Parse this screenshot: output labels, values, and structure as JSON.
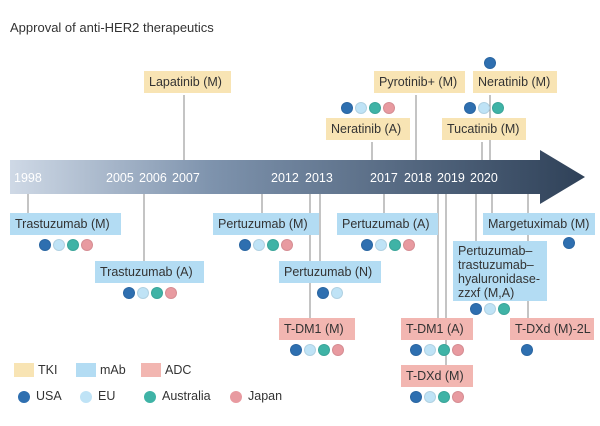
{
  "title": "Approval of anti-HER2 therapeutics",
  "colors": {
    "USA": "#2e6fb0",
    "EU": "#bfe3f6",
    "Australia": "#3fb3a6",
    "Japan": "#e89aa0",
    "TKI": "#f8e4b4",
    "mAb": "#b3dcf3",
    "ADC": "#f2b6b1"
  },
  "years": [
    "1998",
    "2005",
    "2006",
    "2007",
    "2012",
    "2013",
    "2017",
    "2018",
    "2019",
    "2020"
  ],
  "approvals": [
    {
      "drug": "Trastuzumab (M)",
      "year": "1998",
      "class": "mAb",
      "regions": [
        "USA",
        "EU",
        "Australia",
        "Japan"
      ]
    },
    {
      "drug": "Trastuzumab (A)",
      "year": "2006",
      "class": "mAb",
      "regions": [
        "USA",
        "EU",
        "Australia",
        "Japan"
      ]
    },
    {
      "drug": "Lapatinib (M)",
      "year": "2007",
      "class": "TKI",
      "regions": []
    },
    {
      "drug": "Pertuzumab (M)",
      "year": "2012",
      "class": "mAb",
      "regions": [
        "USA",
        "EU",
        "Australia",
        "Japan"
      ]
    },
    {
      "drug": "Pertuzumab (N)",
      "year": "2013",
      "class": "mAb",
      "regions": [
        "USA",
        "EU"
      ]
    },
    {
      "drug": "T-DM1 (M)",
      "year": "2013",
      "class": "ADC",
      "regions": [
        "USA",
        "EU",
        "Australia",
        "Japan"
      ]
    },
    {
      "drug": "Neratinib (A)",
      "year": "2017",
      "class": "TKI",
      "regions": [
        "USA",
        "EU",
        "Australia",
        "Japan"
      ]
    },
    {
      "drug": "Pertuzumab (A)",
      "year": "2017",
      "class": "mAb",
      "regions": [
        "USA",
        "EU",
        "Australia",
        "Japan"
      ]
    },
    {
      "drug": "Pyrotinib+ (M)",
      "year": "2018",
      "class": "TKI",
      "regions": []
    },
    {
      "drug": "T-DM1 (A)",
      "year": "2019",
      "class": "ADC",
      "regions": [
        "USA",
        "EU",
        "Australia",
        "Japan"
      ]
    },
    {
      "drug": "T-DXd (M)",
      "year": "2019",
      "class": "ADC",
      "regions": [
        "USA",
        "EU",
        "Australia",
        "Japan"
      ]
    },
    {
      "drug": "Tucatinib (M)",
      "year": "2020",
      "class": "TKI",
      "regions": [
        "USA",
        "EU",
        "Australia"
      ]
    },
    {
      "drug": "Neratinib (M)",
      "year": "2020",
      "class": "TKI",
      "regions": [
        "USA"
      ]
    },
    {
      "drug": "Pertuzumab–trastuzumab–hyaluronidase-zzxf (M,A)",
      "year": "2020",
      "class": "mAb",
      "regions": [
        "USA",
        "EU",
        "Australia"
      ]
    },
    {
      "drug": "Margetuximab (M)",
      "year": "2020",
      "class": "mAb",
      "regions": [
        "USA"
      ]
    },
    {
      "drug": "T-DXd (M)-2L",
      "year": "2020",
      "class": "ADC",
      "regions": [
        "USA"
      ]
    }
  ],
  "legend": {
    "classes": [
      "TKI",
      "mAb",
      "ADC"
    ],
    "regions": [
      "USA",
      "EU",
      "Australia",
      "Japan"
    ]
  }
}
